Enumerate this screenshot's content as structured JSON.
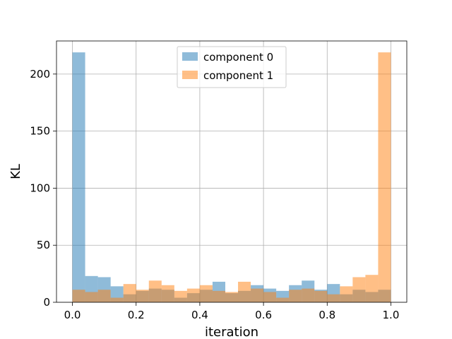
{
  "chart_data": {
    "type": "bar",
    "title": "",
    "xlabel": "iteration",
    "ylabel": "KL",
    "xlim": [
      -0.05,
      1.05
    ],
    "ylim": [
      0,
      229
    ],
    "grid": true,
    "legend_position": "top-center",
    "xticks": [
      0.0,
      0.2,
      0.4,
      0.6,
      0.8,
      1.0
    ],
    "xtick_labels": [
      "0.0",
      "0.2",
      "0.4",
      "0.6",
      "0.8",
      "1.0"
    ],
    "yticks": [
      0,
      50,
      100,
      150,
      200
    ],
    "ytick_labels": [
      "0",
      "50",
      "100",
      "150",
      "200"
    ],
    "bin_edges": [
      0.0,
      0.04,
      0.08,
      0.12,
      0.16,
      0.2,
      0.24,
      0.28,
      0.32,
      0.36,
      0.4,
      0.44,
      0.48,
      0.52,
      0.56,
      0.6,
      0.64,
      0.68,
      0.72,
      0.76,
      0.8,
      0.84,
      0.88,
      0.92,
      0.96,
      1.0
    ],
    "series": [
      {
        "name": "component 0",
        "color": "#1f77b4",
        "values": [
          219,
          23,
          22,
          14,
          7,
          10,
          12,
          11,
          4,
          8,
          11,
          18,
          8,
          10,
          15,
          12,
          10,
          15,
          19,
          11,
          16,
          7,
          11,
          9,
          11
        ]
      },
      {
        "name": "component 1",
        "color": "#ff7f0e",
        "values": [
          11,
          9,
          11,
          4,
          16,
          11,
          19,
          15,
          10,
          12,
          15,
          10,
          9,
          18,
          12,
          9,
          4,
          11,
          12,
          10,
          7,
          14,
          22,
          24,
          219
        ]
      }
    ]
  }
}
